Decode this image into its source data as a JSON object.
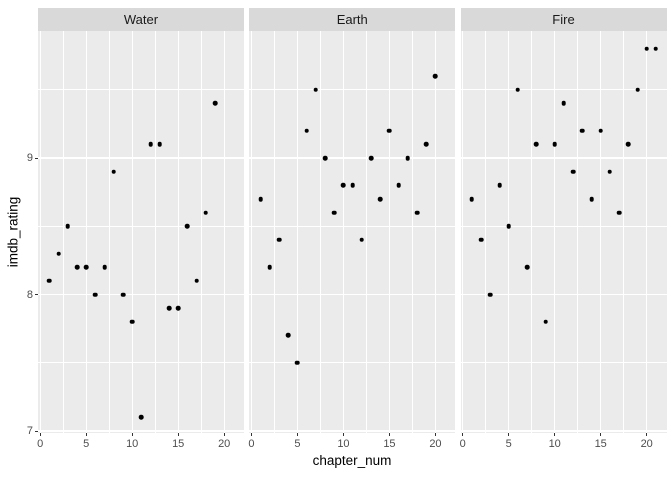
{
  "chart_data": {
    "type": "scatter",
    "title": "",
    "xlabel": "chapter_num",
    "ylabel": "imdb_rating",
    "facets": [
      "Water",
      "Earth",
      "Fire"
    ],
    "x_ticks": [
      0,
      5,
      10,
      15,
      20
    ],
    "x_minor_ticks": [
      2.5,
      7.5,
      12.5,
      17.5
    ],
    "y_ticks": [
      7,
      8,
      9
    ],
    "y_minor_ticks": [
      7.5,
      8.5,
      9.5
    ],
    "xlim": [
      -0.3,
      22.2
    ],
    "ylim": [
      6.97,
      9.93
    ],
    "grid": "on",
    "legend": "none",
    "series": [
      {
        "name": "Water",
        "points": [
          [
            1,
            8.1
          ],
          [
            2,
            8.3
          ],
          [
            3,
            8.5
          ],
          [
            4,
            8.2
          ],
          [
            5,
            8.2
          ],
          [
            6,
            8.0
          ],
          [
            7,
            8.2
          ],
          [
            8,
            8.9
          ],
          [
            9,
            8.0
          ],
          [
            10,
            7.8
          ],
          [
            11,
            7.1
          ],
          [
            12,
            9.1
          ],
          [
            13,
            9.1
          ],
          [
            14,
            7.9
          ],
          [
            15,
            7.9
          ],
          [
            16,
            8.5
          ],
          [
            17,
            8.1
          ],
          [
            18,
            8.6
          ],
          [
            19,
            9.4
          ]
        ]
      },
      {
        "name": "Earth",
        "points": [
          [
            1,
            8.7
          ],
          [
            2,
            8.2
          ],
          [
            3,
            8.4
          ],
          [
            4,
            7.7
          ],
          [
            5,
            7.5
          ],
          [
            6,
            9.2
          ],
          [
            7,
            9.5
          ],
          [
            8,
            9.0
          ],
          [
            9,
            8.6
          ],
          [
            10,
            8.8
          ],
          [
            11,
            8.8
          ],
          [
            12,
            8.4
          ],
          [
            13,
            9.0
          ],
          [
            14,
            8.7
          ],
          [
            15,
            9.2
          ],
          [
            16,
            8.8
          ],
          [
            17,
            9.0
          ],
          [
            18,
            8.6
          ],
          [
            19,
            9.1
          ],
          [
            20,
            9.6
          ]
        ]
      },
      {
        "name": "Fire",
        "points": [
          [
            1,
            8.7
          ],
          [
            2,
            8.4
          ],
          [
            3,
            8.0
          ],
          [
            4,
            8.8
          ],
          [
            5,
            8.5
          ],
          [
            6,
            9.5
          ],
          [
            7,
            8.2
          ],
          [
            8,
            9.1
          ],
          [
            9,
            7.8
          ],
          [
            10,
            9.1
          ],
          [
            11,
            9.4
          ],
          [
            12,
            8.9
          ],
          [
            13,
            9.2
          ],
          [
            14,
            8.7
          ],
          [
            15,
            9.2
          ],
          [
            16,
            8.9
          ],
          [
            17,
            8.6
          ],
          [
            18,
            9.1
          ],
          [
            19,
            9.5
          ],
          [
            20,
            9.8
          ],
          [
            21,
            9.8
          ]
        ]
      }
    ],
    "colors": {
      "panel_background": "#EBEBEB",
      "strip_background": "#D9D9D9",
      "gridline": "#FFFFFF",
      "point": "#000000",
      "tick_label": "#4D4D4D",
      "strip_text": "#1A1A1A",
      "axis_title": "#000000",
      "tick_mark": "#333333"
    }
  }
}
